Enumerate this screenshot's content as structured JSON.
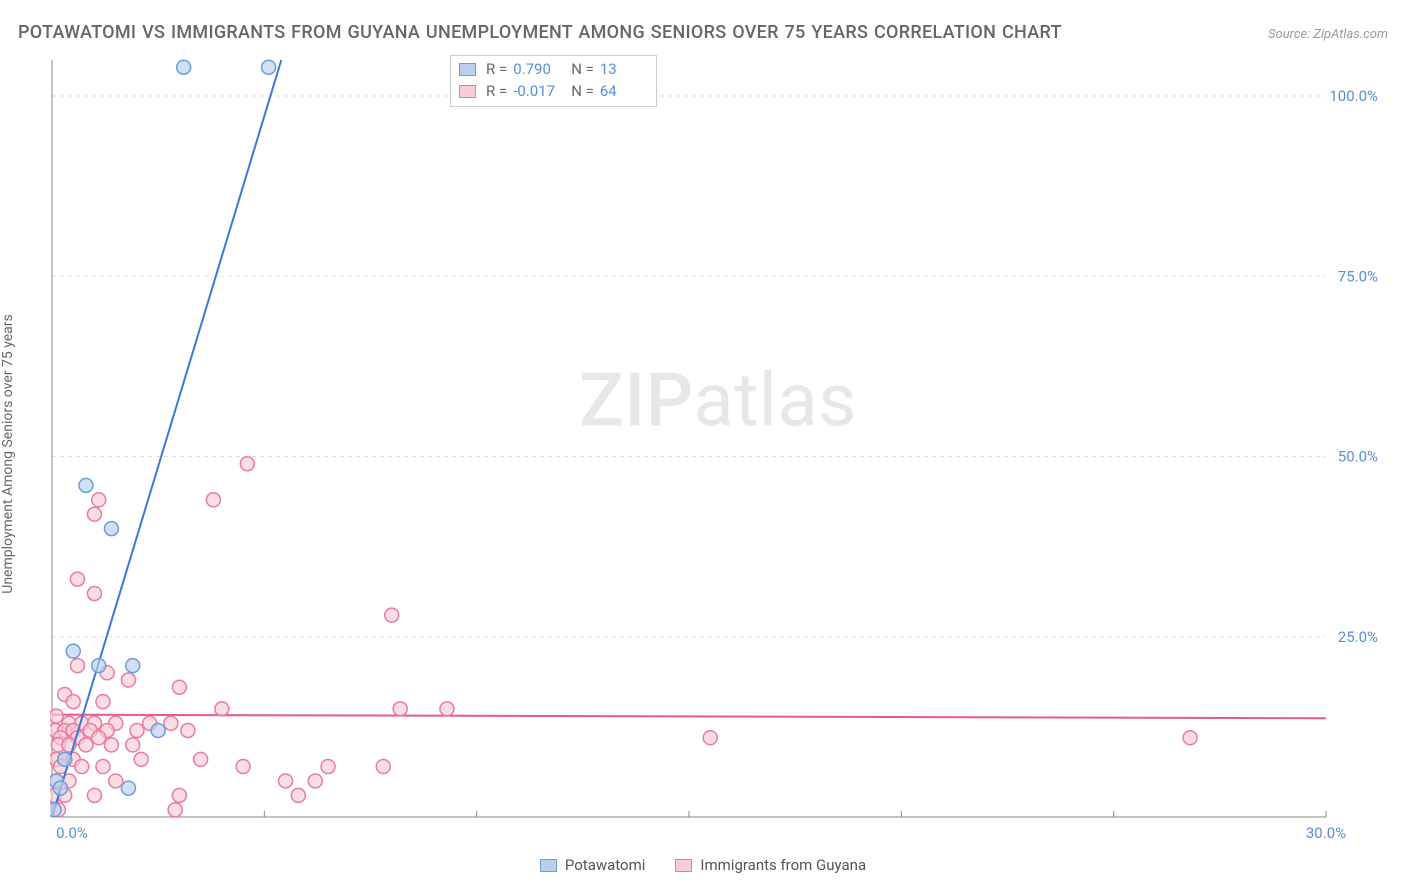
{
  "header": {
    "title": "POTAWATOMI VS IMMIGRANTS FROM GUYANA UNEMPLOYMENT AMONG SENIORS OVER 75 YEARS CORRELATION CHART",
    "source": "Source: ZipAtlas.com"
  },
  "ylabel": "Unemployment Among Seniors over 75 years",
  "watermark": {
    "part1": "ZIP",
    "part2": "atlas"
  },
  "chart": {
    "type": "scatter",
    "xlim": [
      0,
      30
    ],
    "ylim": [
      0,
      105
    ],
    "xticks": [
      0,
      5,
      10,
      15,
      20,
      25,
      30
    ],
    "xtick_labels": [
      "0.0%",
      "",
      "",
      "",
      "",
      "",
      "30.0%"
    ],
    "yticks": [
      25,
      50,
      75,
      100
    ],
    "ytick_labels": [
      "25.0%",
      "50.0%",
      "75.0%",
      "100.0%"
    ],
    "grid_color": "#dddddd",
    "axis_color": "#888888",
    "background_color": "#ffffff",
    "series": [
      {
        "name": "Potawatomi",
        "color_fill": "#b8d0ee",
        "color_stroke": "#6a9edb",
        "trend_color": "#3b78d8",
        "R": "0.790",
        "N": "13",
        "points": [
          [
            3.1,
            104
          ],
          [
            5.1,
            104
          ],
          [
            0.8,
            46
          ],
          [
            1.4,
            40
          ],
          [
            0.5,
            23
          ],
          [
            1.1,
            21
          ],
          [
            1.9,
            21
          ],
          [
            2.5,
            12
          ],
          [
            0.1,
            5
          ],
          [
            1.8,
            4
          ],
          [
            0.2,
            4
          ],
          [
            0.3,
            8
          ],
          [
            0.05,
            1
          ]
        ],
        "trend": {
          "x1": 0,
          "y1": 0,
          "x2": 5.4,
          "y2": 105
        }
      },
      {
        "name": "Immigrants from Guyana",
        "color_fill": "#f7cdd6",
        "color_stroke": "#ea7ba0",
        "trend_color": "#e85a8b",
        "R": "-0.017",
        "N": "64",
        "points": [
          [
            4.6,
            49
          ],
          [
            1.1,
            44
          ],
          [
            3.8,
            44
          ],
          [
            1.0,
            42
          ],
          [
            0.6,
            33
          ],
          [
            1.0,
            31
          ],
          [
            8.0,
            28
          ],
          [
            0.6,
            21
          ],
          [
            1.3,
            20
          ],
          [
            1.8,
            19
          ],
          [
            3.0,
            18
          ],
          [
            0.3,
            17
          ],
          [
            0.5,
            16
          ],
          [
            1.2,
            16
          ],
          [
            4.0,
            15
          ],
          [
            8.2,
            15
          ],
          [
            9.3,
            15
          ],
          [
            0.1,
            14
          ],
          [
            0.4,
            13
          ],
          [
            0.7,
            13
          ],
          [
            1.0,
            13
          ],
          [
            1.5,
            13
          ],
          [
            2.3,
            13
          ],
          [
            2.8,
            13
          ],
          [
            0.08,
            12
          ],
          [
            0.3,
            12
          ],
          [
            0.5,
            12
          ],
          [
            0.9,
            12
          ],
          [
            1.3,
            12
          ],
          [
            2.0,
            12
          ],
          [
            3.2,
            12
          ],
          [
            15.5,
            11
          ],
          [
            26.8,
            11
          ],
          [
            0.2,
            11
          ],
          [
            0.6,
            11
          ],
          [
            1.1,
            11
          ],
          [
            0.15,
            10
          ],
          [
            0.4,
            10
          ],
          [
            0.8,
            10
          ],
          [
            1.4,
            10
          ],
          [
            1.9,
            10
          ],
          [
            0.1,
            8
          ],
          [
            0.3,
            8
          ],
          [
            0.5,
            8
          ],
          [
            2.1,
            8
          ],
          [
            3.5,
            8
          ],
          [
            0.2,
            7
          ],
          [
            0.7,
            7
          ],
          [
            1.2,
            7
          ],
          [
            4.5,
            7
          ],
          [
            6.5,
            7
          ],
          [
            7.8,
            7
          ],
          [
            0.1,
            5
          ],
          [
            0.4,
            5
          ],
          [
            1.5,
            5
          ],
          [
            5.5,
            5
          ],
          [
            6.2,
            5
          ],
          [
            0.05,
            3
          ],
          [
            0.3,
            3
          ],
          [
            1.0,
            3
          ],
          [
            3.0,
            3
          ],
          [
            5.8,
            3
          ],
          [
            2.9,
            1
          ],
          [
            0.15,
            1
          ]
        ],
        "trend": {
          "x1": 0,
          "y1": 14.2,
          "x2": 30,
          "y2": 13.7
        }
      }
    ],
    "marker_radius": 7,
    "marker_opacity": 0.65
  },
  "legend_top": {
    "rows": [
      {
        "series_idx": 0,
        "r_label": "R =",
        "n_label": "N ="
      },
      {
        "series_idx": 1,
        "r_label": "R =",
        "n_label": "N ="
      }
    ]
  },
  "legend_bottom": [
    {
      "series_idx": 0
    },
    {
      "series_idx": 1
    }
  ]
}
